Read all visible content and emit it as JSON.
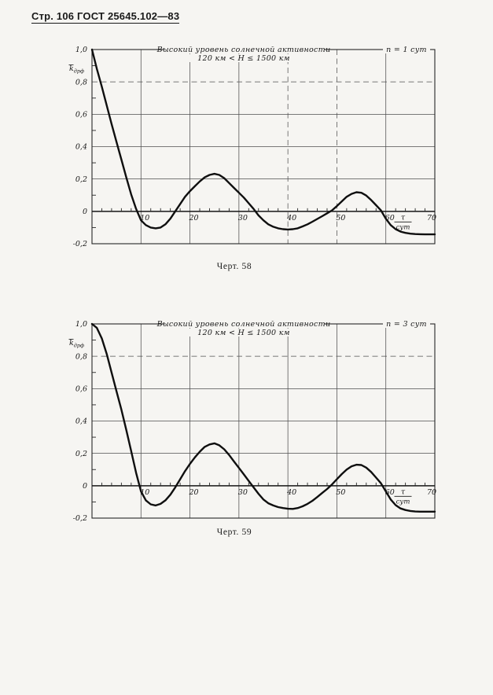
{
  "page": {
    "header": "Стр. 106 ГОСТ 25645.102—83",
    "paper_color": "#f6f5f2",
    "ink_color": "#1a1a1a"
  },
  "chart_data": [
    {
      "type": "line",
      "figure_number": "58",
      "caption": "Черт. 58",
      "title": "Высокий уровень солнечной активности",
      "subtitle": "120 км < H ≤ 1500 км",
      "annotation": "n = 1 сут",
      "ylabel_main": "k",
      "ylabel_sub": "дрф",
      "xlabel_numerator": "τ",
      "xlabel_denominator": "сут",
      "xlim": [
        0,
        70
      ],
      "ylim": [
        -0.2,
        1.0
      ],
      "grid": "on",
      "x_ticks": [
        {
          "v": 10,
          "label": "10"
        },
        {
          "v": 20,
          "label": "20"
        },
        {
          "v": 30,
          "label": "30"
        },
        {
          "v": 40,
          "label": "40"
        },
        {
          "v": 50,
          "label": "50"
        },
        {
          "v": 60,
          "label": "60"
        },
        {
          "v": 70,
          "label": "70"
        }
      ],
      "y_ticks": [
        {
          "v": 1.0,
          "label": "1,0"
        },
        {
          "v": 0.8,
          "label": "0,8"
        },
        {
          "v": 0.6,
          "label": "0,6"
        },
        {
          "v": 0.4,
          "label": "0,4"
        },
        {
          "v": 0.2,
          "label": "0,2"
        },
        {
          "v": 0,
          "label": "0"
        },
        {
          "v": -0.2,
          "label": "-0,2"
        }
      ],
      "x_grid": [
        {
          "v": 10
        },
        {
          "v": 20
        },
        {
          "v": 30
        },
        {
          "v": 40,
          "dashed": true
        },
        {
          "v": 50,
          "dashed": true
        },
        {
          "v": 60
        }
      ],
      "y_grid": [
        {
          "v": 0.8,
          "dashed": true
        },
        {
          "v": 0.6
        },
        {
          "v": 0.4
        },
        {
          "v": 0.2
        }
      ],
      "points": [
        [
          0,
          1.0
        ],
        [
          1,
          0.88
        ],
        [
          2,
          0.77
        ],
        [
          3,
          0.655
        ],
        [
          4,
          0.54
        ],
        [
          5,
          0.43
        ],
        [
          6,
          0.32
        ],
        [
          7,
          0.21
        ],
        [
          8,
          0.105
        ],
        [
          9,
          0.015
        ],
        [
          10,
          -0.055
        ],
        [
          11,
          -0.085
        ],
        [
          12,
          -0.1
        ],
        [
          13,
          -0.105
        ],
        [
          14,
          -0.1
        ],
        [
          15,
          -0.08
        ],
        [
          16,
          -0.045
        ],
        [
          17,
          0.0
        ],
        [
          18,
          0.045
        ],
        [
          19,
          0.09
        ],
        [
          20,
          0.125
        ],
        [
          21,
          0.155
        ],
        [
          22,
          0.185
        ],
        [
          23,
          0.21
        ],
        [
          24,
          0.225
        ],
        [
          25,
          0.232
        ],
        [
          26,
          0.225
        ],
        [
          27,
          0.205
        ],
        [
          28,
          0.175
        ],
        [
          29,
          0.145
        ],
        [
          30,
          0.115
        ],
        [
          31,
          0.085
        ],
        [
          32,
          0.05
        ],
        [
          33,
          0.015
        ],
        [
          34,
          -0.025
        ],
        [
          35,
          -0.055
        ],
        [
          36,
          -0.08
        ],
        [
          37,
          -0.095
        ],
        [
          38,
          -0.105
        ],
        [
          39,
          -0.11
        ],
        [
          40,
          -0.112
        ],
        [
          41,
          -0.11
        ],
        [
          42,
          -0.105
        ],
        [
          43,
          -0.093
        ],
        [
          44,
          -0.08
        ],
        [
          45,
          -0.064
        ],
        [
          46,
          -0.047
        ],
        [
          47,
          -0.03
        ],
        [
          48,
          -0.012
        ],
        [
          49,
          0.006
        ],
        [
          50,
          0.032
        ],
        [
          51,
          0.062
        ],
        [
          52,
          0.09
        ],
        [
          53,
          0.108
        ],
        [
          54,
          0.118
        ],
        [
          55,
          0.115
        ],
        [
          56,
          0.098
        ],
        [
          57,
          0.07
        ],
        [
          58,
          0.038
        ],
        [
          59,
          0.006
        ],
        [
          60,
          -0.045
        ],
        [
          61,
          -0.085
        ],
        [
          62,
          -0.11
        ],
        [
          63,
          -0.125
        ],
        [
          64,
          -0.133
        ],
        [
          65,
          -0.138
        ],
        [
          66,
          -0.14
        ],
        [
          67,
          -0.141
        ],
        [
          68,
          -0.142
        ],
        [
          69,
          -0.142
        ],
        [
          70,
          -0.142
        ]
      ]
    },
    {
      "type": "line",
      "figure_number": "59",
      "caption": "Черт. 59",
      "title": "Высокий уровень солнечной активности",
      "subtitle": "120 км < H ≤ 1500 км",
      "annotation": "n = 3 сут",
      "ylabel_main": "k",
      "ylabel_sub": "дрф",
      "xlabel_numerator": "τ",
      "xlabel_denominator": "сут",
      "xlim": [
        0,
        70
      ],
      "ylim": [
        -0.2,
        1.0
      ],
      "grid": "on",
      "x_ticks": [
        {
          "v": 10,
          "label": "10"
        },
        {
          "v": 20,
          "label": "20"
        },
        {
          "v": 30,
          "label": "30"
        },
        {
          "v": 40,
          "label": "40"
        },
        {
          "v": 50,
          "label": "50"
        },
        {
          "v": 60,
          "label": "60"
        },
        {
          "v": 70,
          "label": "70"
        }
      ],
      "y_ticks": [
        {
          "v": 1.0,
          "label": "1,0"
        },
        {
          "v": 0.8,
          "label": "0,8"
        },
        {
          "v": 0.6,
          "label": "0,6"
        },
        {
          "v": 0.4,
          "label": "0,4"
        },
        {
          "v": 0.2,
          "label": "0,2"
        },
        {
          "v": 0,
          "label": "0"
        },
        {
          "v": -0.2,
          "label": "-0,2"
        }
      ],
      "x_grid": [
        {
          "v": 10
        },
        {
          "v": 20
        },
        {
          "v": 30
        },
        {
          "v": 40
        },
        {
          "v": 50
        },
        {
          "v": 60
        }
      ],
      "y_grid": [
        {
          "v": 0.8,
          "dashed": true
        },
        {
          "v": 0.6
        },
        {
          "v": 0.4
        },
        {
          "v": 0.2
        }
      ],
      "points": [
        [
          0,
          1.0
        ],
        [
          1,
          0.975
        ],
        [
          2,
          0.91
        ],
        [
          3,
          0.815
        ],
        [
          4,
          0.7
        ],
        [
          5,
          0.585
        ],
        [
          6,
          0.47
        ],
        [
          7,
          0.345
        ],
        [
          8,
          0.215
        ],
        [
          9,
          0.08
        ],
        [
          10,
          -0.035
        ],
        [
          11,
          -0.09
        ],
        [
          12,
          -0.115
        ],
        [
          13,
          -0.122
        ],
        [
          14,
          -0.112
        ],
        [
          15,
          -0.09
        ],
        [
          16,
          -0.055
        ],
        [
          17,
          -0.01
        ],
        [
          18,
          0.04
        ],
        [
          19,
          0.09
        ],
        [
          20,
          0.135
        ],
        [
          21,
          0.175
        ],
        [
          22,
          0.21
        ],
        [
          23,
          0.24
        ],
        [
          24,
          0.255
        ],
        [
          25,
          0.262
        ],
        [
          26,
          0.25
        ],
        [
          27,
          0.225
        ],
        [
          28,
          0.19
        ],
        [
          29,
          0.15
        ],
        [
          30,
          0.11
        ],
        [
          31,
          0.07
        ],
        [
          32,
          0.03
        ],
        [
          33,
          -0.01
        ],
        [
          34,
          -0.05
        ],
        [
          35,
          -0.085
        ],
        [
          36,
          -0.108
        ],
        [
          37,
          -0.122
        ],
        [
          38,
          -0.132
        ],
        [
          39,
          -0.138
        ],
        [
          40,
          -0.142
        ],
        [
          41,
          -0.143
        ],
        [
          42,
          -0.138
        ],
        [
          43,
          -0.127
        ],
        [
          44,
          -0.112
        ],
        [
          45,
          -0.093
        ],
        [
          46,
          -0.07
        ],
        [
          47,
          -0.045
        ],
        [
          48,
          -0.02
        ],
        [
          49,
          0.008
        ],
        [
          50,
          0.04
        ],
        [
          51,
          0.072
        ],
        [
          52,
          0.1
        ],
        [
          53,
          0.12
        ],
        [
          54,
          0.13
        ],
        [
          55,
          0.128
        ],
        [
          56,
          0.112
        ],
        [
          57,
          0.085
        ],
        [
          58,
          0.05
        ],
        [
          59,
          0.015
        ],
        [
          60,
          -0.035
        ],
        [
          61,
          -0.085
        ],
        [
          62,
          -0.12
        ],
        [
          63,
          -0.14
        ],
        [
          64,
          -0.15
        ],
        [
          65,
          -0.156
        ],
        [
          66,
          -0.159
        ],
        [
          67,
          -0.16
        ],
        [
          68,
          -0.16
        ],
        [
          69,
          -0.16
        ],
        [
          70,
          -0.16
        ]
      ]
    }
  ]
}
